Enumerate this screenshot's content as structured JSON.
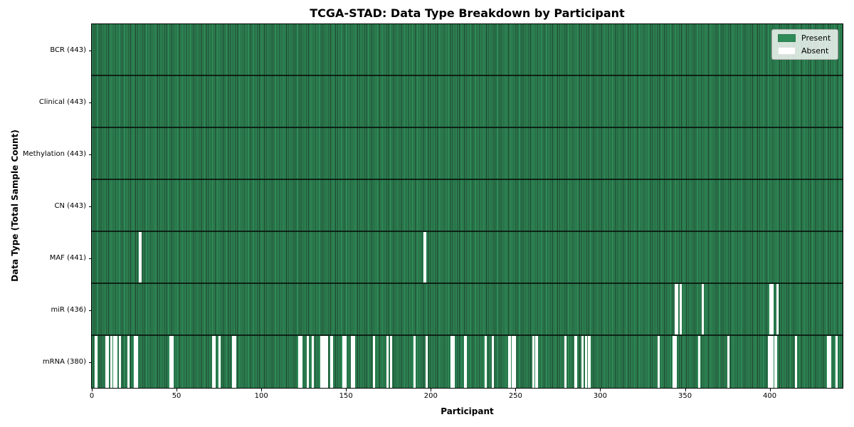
{
  "figure": {
    "title": "TCGA-STAD: Data Type Breakdown by Participant",
    "x_axis": {
      "label": "Participant",
      "ticks": [
        0,
        50,
        100,
        150,
        200,
        250,
        300,
        350,
        400
      ]
    },
    "y_axis": {
      "label": "Data Type (Total Sample Count)"
    },
    "legend": {
      "items": [
        {
          "label": "Present",
          "color": "#2e8b57"
        },
        {
          "label": "Absent",
          "color": "#ffffff"
        }
      ]
    }
  },
  "chart_data": {
    "type": "heatmap",
    "title": "TCGA-STAD: Data Type Breakdown by Participant",
    "xlabel": "Participant",
    "ylabel": "Data Type (Total Sample Count)",
    "legend_position": "upper right",
    "x_range": [
      0,
      443
    ],
    "n_participants": 443,
    "colors": {
      "present": "#2e8b57",
      "absent": "#ffffff",
      "cell_edge": "#1e3c2b",
      "row_divider": "#0c1810",
      "axis": "#000000"
    },
    "rows": [
      {
        "data_type": "BCR",
        "tick_label": "BCR (443)",
        "present_count": 443,
        "absent_participants": []
      },
      {
        "data_type": "Clinical",
        "tick_label": "Clinical (443)",
        "present_count": 443,
        "absent_participants": []
      },
      {
        "data_type": "Methylation",
        "tick_label": "Methylation (443)",
        "present_count": 443,
        "absent_participants": []
      },
      {
        "data_type": "CN",
        "tick_label": "CN (443)",
        "present_count": 443,
        "absent_participants": []
      },
      {
        "data_type": "MAF",
        "tick_label": "MAF (441)",
        "present_count": 441,
        "absent_participants": [
          28,
          196
        ]
      },
      {
        "data_type": "miR",
        "tick_label": "miR (436)",
        "present_count": 436,
        "absent_participants": [
          344,
          345,
          347,
          360,
          400,
          401,
          404
        ]
      },
      {
        "data_type": "mRNA",
        "tick_label": "mRNA (380)",
        "present_count": 380,
        "absent_participants": [
          2,
          8,
          9,
          11,
          13,
          14,
          16,
          21,
          25,
          26,
          46,
          47,
          71,
          72,
          75,
          83,
          84,
          122,
          123,
          127,
          130,
          135,
          136,
          137,
          138,
          141,
          148,
          149,
          153,
          154,
          166,
          174,
          176,
          190,
          197,
          212,
          213,
          220,
          232,
          236,
          246,
          248,
          249,
          260,
          262,
          279,
          285,
          289,
          291,
          293,
          334,
          343,
          344,
          358,
          375,
          399,
          400,
          401,
          403,
          415,
          434,
          435,
          439
        ]
      }
    ]
  }
}
